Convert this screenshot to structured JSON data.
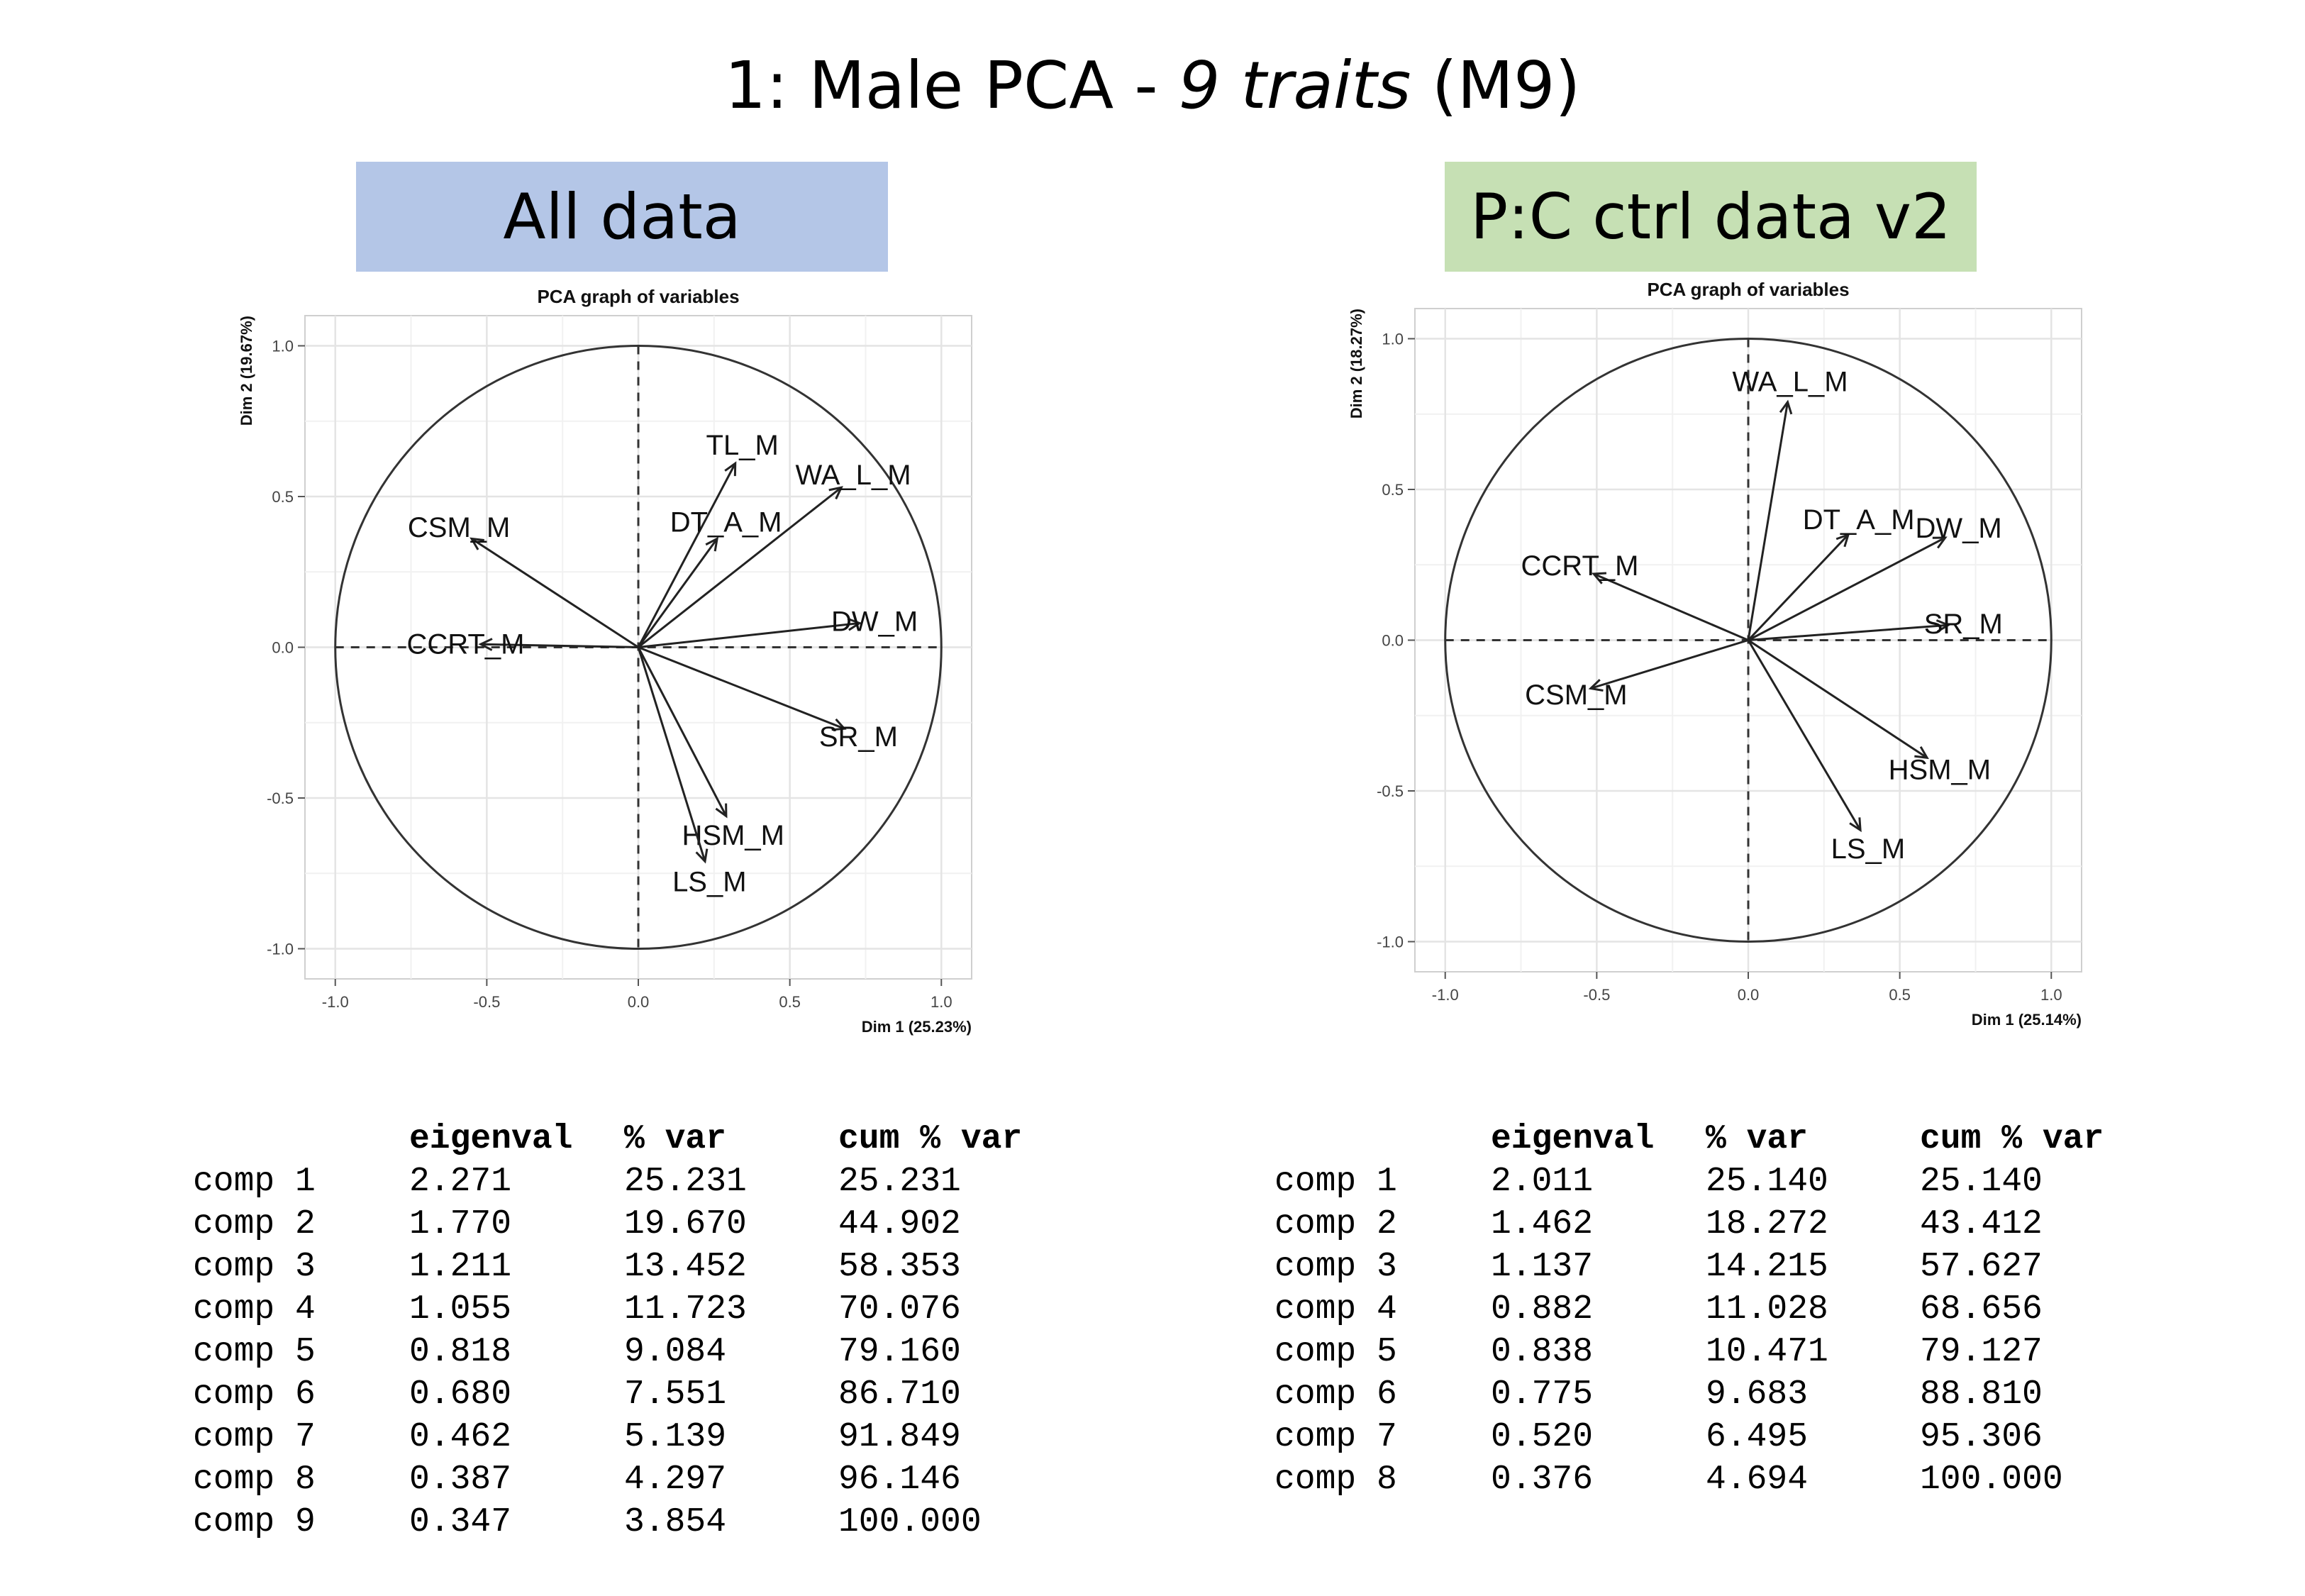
{
  "title": {
    "prefix": "1: Male PCA - ",
    "italic": "9 traits",
    "suffix": " (M9)"
  },
  "panels": [
    {
      "label": "All data",
      "color": "#b4c6e7"
    },
    {
      "label": "P:C ctrl data v2",
      "color": "#c6e0b4"
    }
  ],
  "chart_data": [
    {
      "type": "scatter",
      "subtype": "pca-correlation-circle",
      "title": "PCA graph of variables",
      "xlabel": "Dim 1 (25.23%)",
      "ylabel": "Dim 2 (19.67%)",
      "xlim": [
        -1.1,
        1.1
      ],
      "ylim": [
        -1.1,
        1.1
      ],
      "xticks": [
        "-1.0",
        "-0.5",
        "0.0",
        "0.5",
        "1.0"
      ],
      "yticks": [
        "-1.0",
        "-0.5",
        "0.0",
        "0.5",
        "1.0"
      ],
      "grid": true,
      "variables": [
        {
          "name": "TL_M",
          "x": 0.32,
          "y": 0.61
        },
        {
          "name": "DT_A_M",
          "x": 0.26,
          "y": 0.36
        },
        {
          "name": "WA_L_M",
          "x": 0.67,
          "y": 0.53
        },
        {
          "name": "CSM_M",
          "x": -0.55,
          "y": 0.36
        },
        {
          "name": "CCRT_M",
          "x": -0.52,
          "y": 0.01
        },
        {
          "name": "DW_M",
          "x": 0.73,
          "y": 0.08
        },
        {
          "name": "SR_M",
          "x": 0.68,
          "y": -0.27
        },
        {
          "name": "HSM_M",
          "x": 0.29,
          "y": -0.56
        },
        {
          "name": "LS_M",
          "x": 0.22,
          "y": -0.71
        }
      ]
    },
    {
      "type": "scatter",
      "subtype": "pca-correlation-circle",
      "title": "PCA graph of variables",
      "xlabel": "Dim 1 (25.14%)",
      "ylabel": "Dim 2 (18.27%)",
      "xlim": [
        -1.1,
        1.1
      ],
      "ylim": [
        -1.1,
        1.1
      ],
      "xticks": [
        "-1.0",
        "-0.5",
        "0.0",
        "0.5",
        "1.0"
      ],
      "yticks": [
        "-1.0",
        "-0.5",
        "0.0",
        "0.5",
        "1.0"
      ],
      "grid": true,
      "variables": [
        {
          "name": "WA_L_M",
          "x": 0.13,
          "y": 0.79
        },
        {
          "name": "DT_A_M",
          "x": 0.33,
          "y": 0.35
        },
        {
          "name": "CCRT_M",
          "x": -0.51,
          "y": 0.22
        },
        {
          "name": "DW_M",
          "x": 0.65,
          "y": 0.34
        },
        {
          "name": "SR_M",
          "x": 0.66,
          "y": 0.05
        },
        {
          "name": "CSM_M",
          "x": -0.52,
          "y": -0.16
        },
        {
          "name": "HSM_M",
          "x": 0.59,
          "y": -0.39
        },
        {
          "name": "LS_M",
          "x": 0.37,
          "y": -0.63
        }
      ]
    }
  ],
  "tables": [
    {
      "headers": [
        "",
        "eigenval",
        "% var",
        "cum % var"
      ],
      "rows": [
        [
          "comp 1",
          "2.271",
          "25.231",
          "25.231"
        ],
        [
          "comp 2",
          "1.770",
          "19.670",
          "44.902"
        ],
        [
          "comp 3",
          "1.211",
          "13.452",
          "58.353"
        ],
        [
          "comp 4",
          "1.055",
          "11.723",
          "70.076"
        ],
        [
          "comp 5",
          "0.818",
          "9.084",
          "79.160"
        ],
        [
          "comp 6",
          "0.680",
          "7.551",
          "86.710"
        ],
        [
          "comp 7",
          "0.462",
          "5.139",
          "91.849"
        ],
        [
          "comp 8",
          "0.387",
          "4.297",
          "96.146"
        ],
        [
          "comp 9",
          "0.347",
          "3.854",
          "100.000"
        ]
      ]
    },
    {
      "headers": [
        "",
        "eigenval",
        "% var",
        "cum % var"
      ],
      "rows": [
        [
          "comp 1",
          "2.011",
          "25.140",
          "25.140"
        ],
        [
          "comp 2",
          "1.462",
          "18.272",
          "43.412"
        ],
        [
          "comp 3",
          "1.137",
          "14.215",
          "57.627"
        ],
        [
          "comp 4",
          "0.882",
          "11.028",
          "68.656"
        ],
        [
          "comp 5",
          "0.838",
          "10.471",
          "79.127"
        ],
        [
          "comp 6",
          "0.775",
          "9.683",
          "88.810"
        ],
        [
          "comp 7",
          "0.520",
          "6.495",
          "95.306"
        ],
        [
          "comp 8",
          "0.376",
          "4.694",
          "100.000"
        ]
      ]
    }
  ]
}
